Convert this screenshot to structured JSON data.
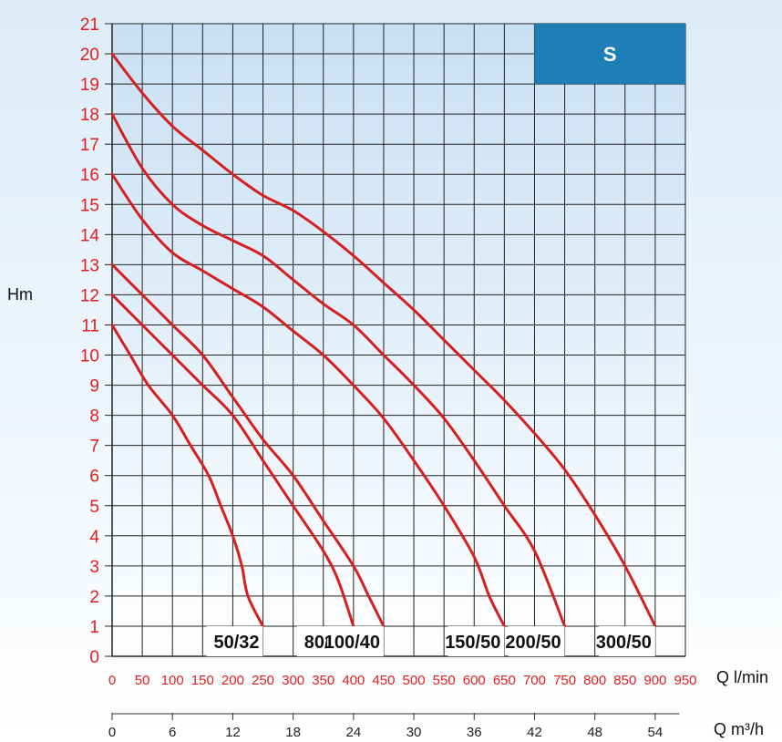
{
  "chart_data": {
    "type": "line",
    "badge": "S",
    "ylabel": "Hm",
    "xlabel": "Q l/min",
    "x2label": "Q m³/h",
    "xlim": [
      0,
      950
    ],
    "ylim": [
      0,
      21
    ],
    "yticks": [
      0,
      1,
      2,
      3,
      4,
      5,
      6,
      7,
      8,
      9,
      10,
      11,
      12,
      13,
      14,
      15,
      16,
      17,
      18,
      19,
      20,
      21
    ],
    "xticks": [
      0,
      50,
      100,
      150,
      200,
      250,
      300,
      350,
      400,
      450,
      500,
      550,
      600,
      650,
      700,
      750,
      800,
      850,
      900,
      950
    ],
    "x2ticks": [
      0,
      6,
      12,
      18,
      24,
      30,
      36,
      42,
      48,
      54
    ],
    "grid": true,
    "colors": {
      "curve": "#d42020",
      "badge": "#1e7fb8",
      "grid": "#222222",
      "plot_top": "#c8e0f4"
    },
    "series": [
      {
        "name": "50/32",
        "points": [
          [
            0,
            11
          ],
          [
            30,
            10
          ],
          [
            60,
            9
          ],
          [
            100,
            8
          ],
          [
            130,
            7
          ],
          [
            160,
            6
          ],
          [
            180,
            5
          ],
          [
            200,
            4
          ],
          [
            215,
            3
          ],
          [
            225,
            2
          ],
          [
            250,
            1
          ]
        ]
      },
      {
        "name": "80/40",
        "points": [
          [
            0,
            12
          ],
          [
            50,
            11
          ],
          [
            100,
            10
          ],
          [
            150,
            9
          ],
          [
            200,
            8
          ],
          [
            250,
            6.5
          ],
          [
            300,
            5
          ],
          [
            350,
            3.5
          ],
          [
            375,
            2.5
          ],
          [
            400,
            1
          ]
        ]
      },
      {
        "name": "100/40",
        "points": [
          [
            0,
            13
          ],
          [
            50,
            12
          ],
          [
            100,
            11
          ],
          [
            150,
            10
          ],
          [
            200,
            8.6
          ],
          [
            250,
            7.2
          ],
          [
            300,
            6
          ],
          [
            350,
            4.5
          ],
          [
            400,
            3
          ],
          [
            425,
            2
          ],
          [
            450,
            1
          ]
        ]
      },
      {
        "name": "150/50",
        "points": [
          [
            0,
            16
          ],
          [
            50,
            14.5
          ],
          [
            100,
            13.4
          ],
          [
            150,
            12.8
          ],
          [
            200,
            12.2
          ],
          [
            250,
            11.6
          ],
          [
            300,
            10.8
          ],
          [
            350,
            10
          ],
          [
            400,
            9
          ],
          [
            450,
            7.9
          ],
          [
            500,
            6.5
          ],
          [
            550,
            5
          ],
          [
            600,
            3.3
          ],
          [
            625,
            2
          ],
          [
            650,
            1
          ]
        ]
      },
      {
        "name": "200/50",
        "points": [
          [
            0,
            18
          ],
          [
            50,
            16.2
          ],
          [
            100,
            15
          ],
          [
            150,
            14.3
          ],
          [
            200,
            13.8
          ],
          [
            250,
            13.3
          ],
          [
            300,
            12.5
          ],
          [
            350,
            11.7
          ],
          [
            400,
            11
          ],
          [
            450,
            10
          ],
          [
            500,
            9
          ],
          [
            550,
            7.9
          ],
          [
            600,
            6.5
          ],
          [
            650,
            5
          ],
          [
            700,
            3.5
          ],
          [
            750,
            1
          ]
        ]
      },
      {
        "name": "300/50",
        "points": [
          [
            0,
            20
          ],
          [
            50,
            18.7
          ],
          [
            100,
            17.6
          ],
          [
            150,
            16.8
          ],
          [
            200,
            16
          ],
          [
            250,
            15.3
          ],
          [
            300,
            14.8
          ],
          [
            350,
            14.1
          ],
          [
            400,
            13.3
          ],
          [
            450,
            12.4
          ],
          [
            500,
            11.5
          ],
          [
            550,
            10.5
          ],
          [
            600,
            9.5
          ],
          [
            650,
            8.5
          ],
          [
            700,
            7.4
          ],
          [
            750,
            6.2
          ],
          [
            800,
            4.7
          ],
          [
            850,
            3
          ],
          [
            900,
            1
          ]
        ]
      }
    ]
  }
}
